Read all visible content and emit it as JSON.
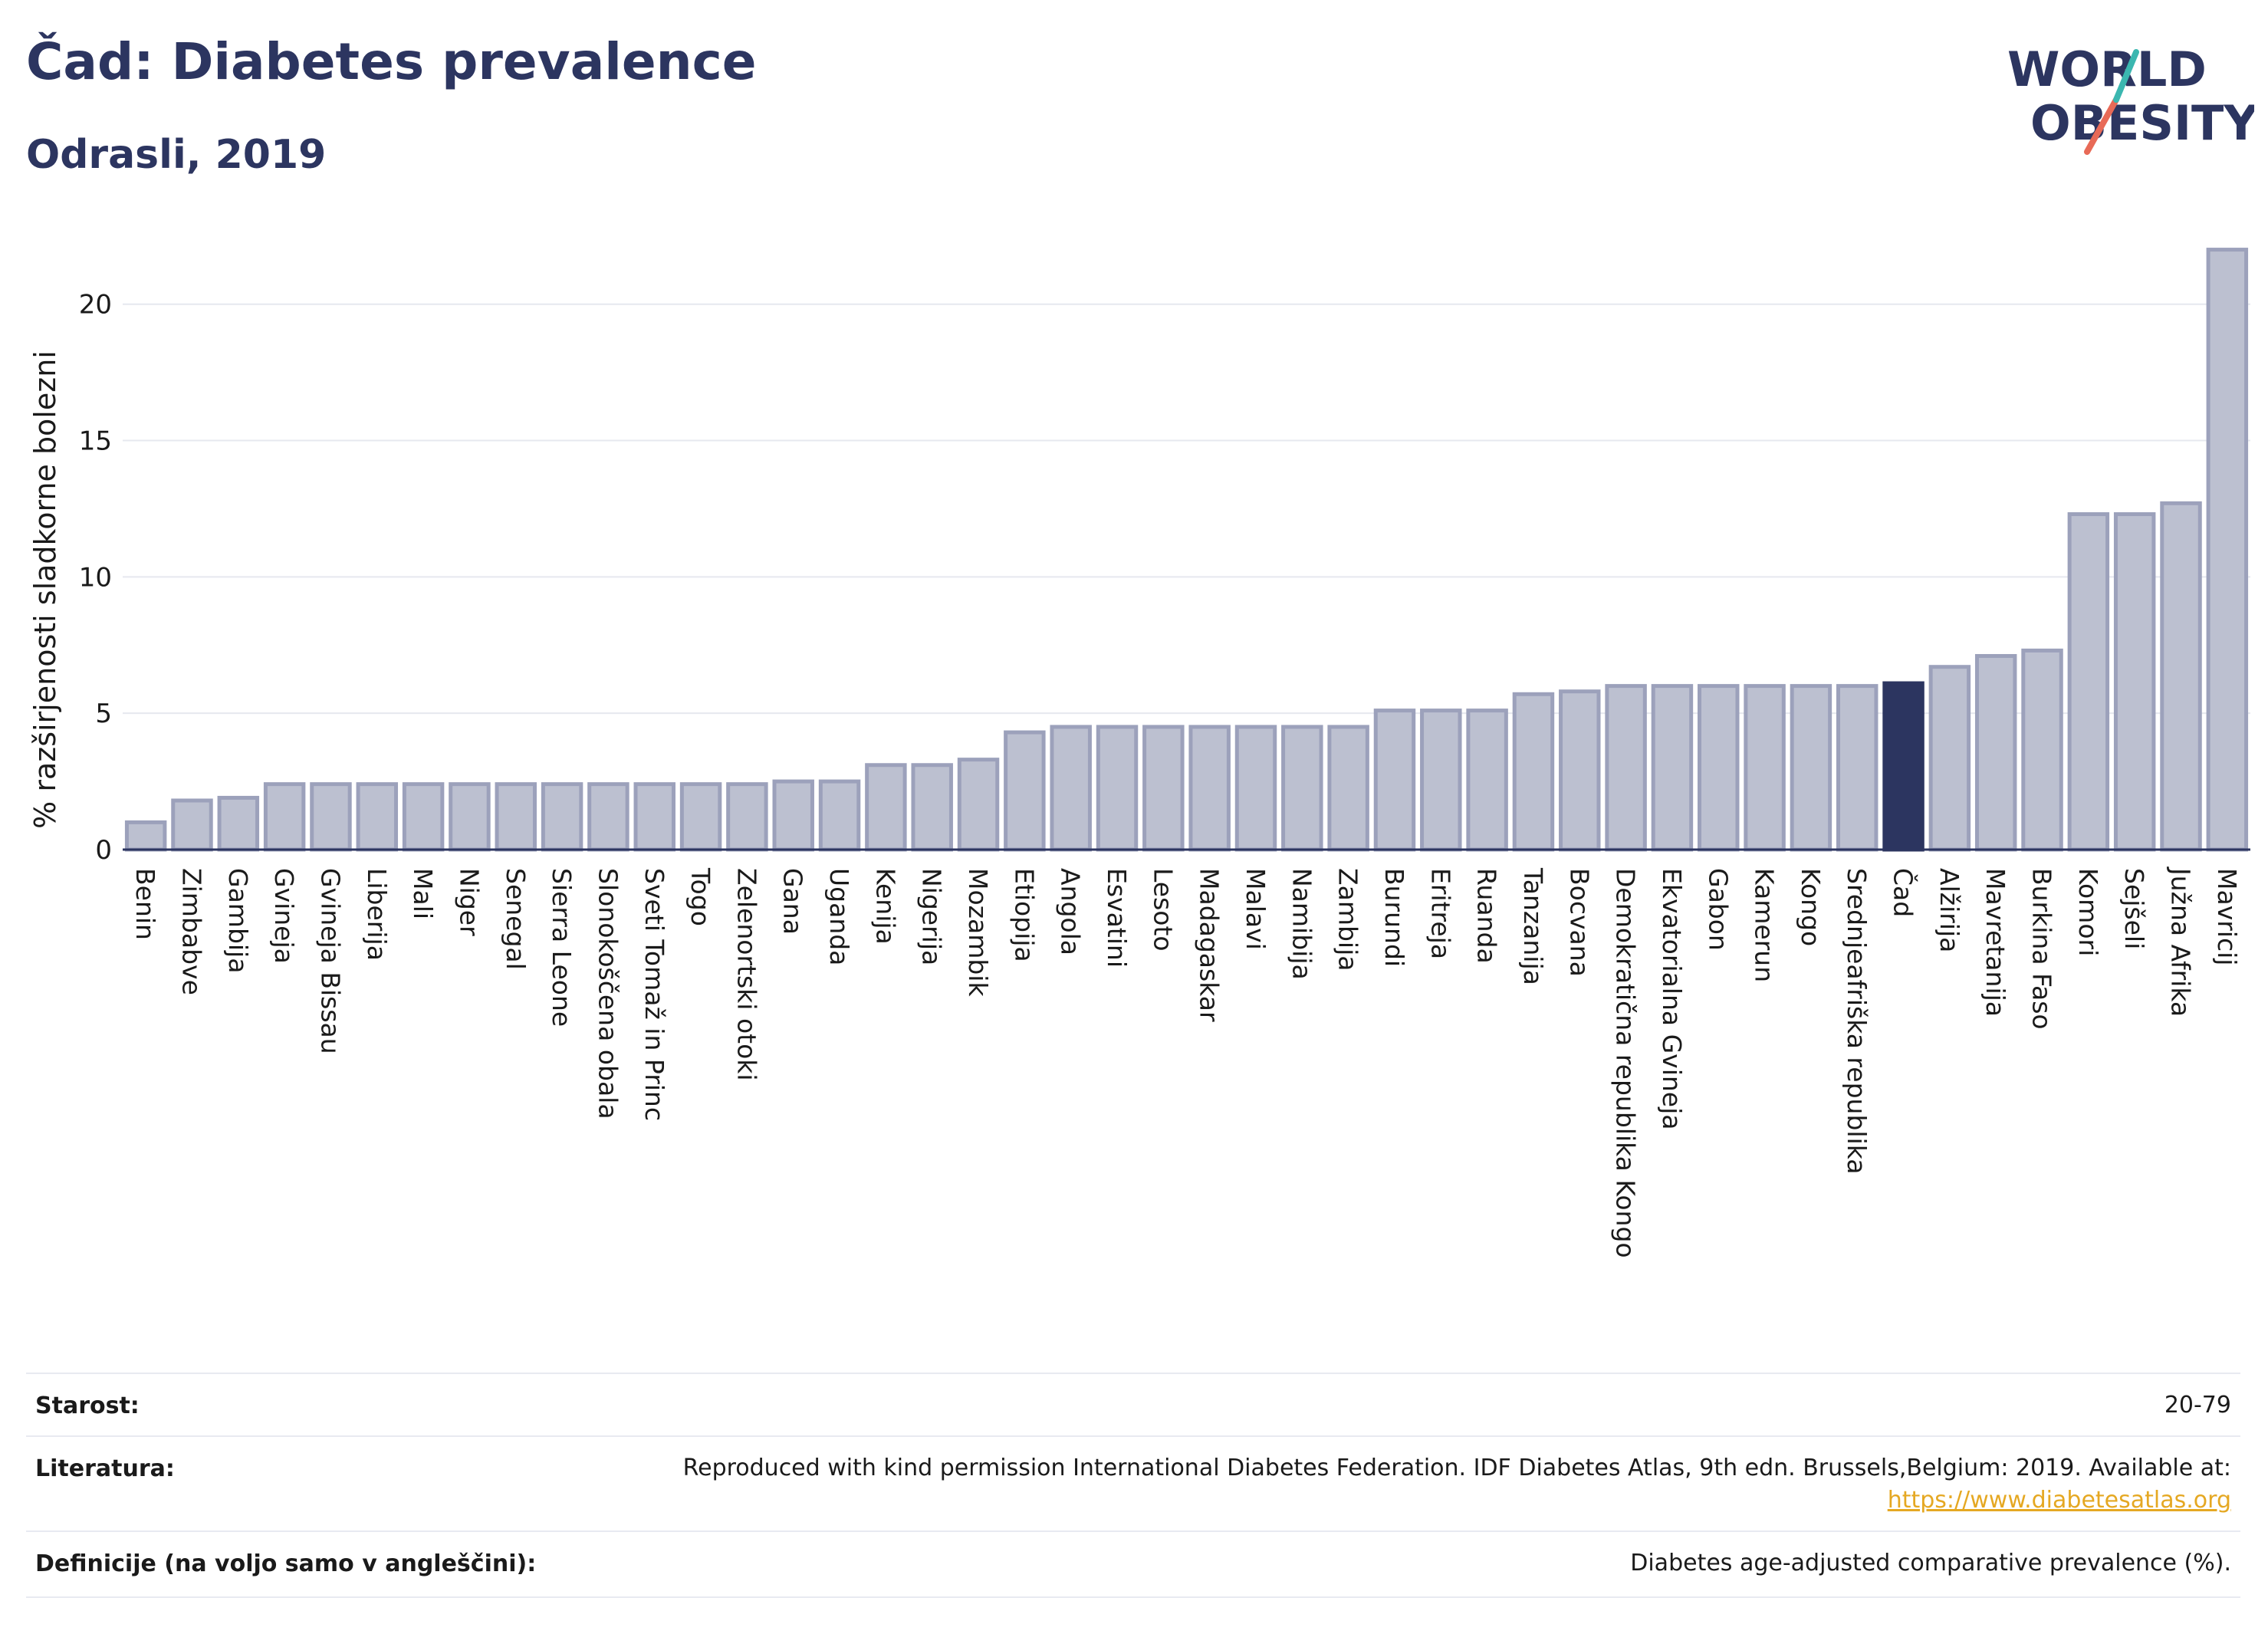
{
  "header": {
    "title": "Čad: Diabetes prevalence",
    "subtitle": "Odrasli, 2019",
    "logo_line1": "WORLD",
    "logo_line2": "OBESITY"
  },
  "chart_data": {
    "type": "bar",
    "ylabel": "% razširjenosti sladkorne bolezni",
    "ylim": [
      0,
      23
    ],
    "yticks": [
      0,
      5,
      10,
      15,
      20
    ],
    "grid": true,
    "highlight": "Čad",
    "bar_color": "#bcc0d0",
    "bar_edge_color": "#9ca1bb",
    "highlight_color": "#2c3560",
    "categories": [
      "Benin",
      "Zimbabve",
      "Gambija",
      "Gvineja",
      "Gvineja Bissau",
      "Liberija",
      "Mali",
      "Niger",
      "Senegal",
      "Sierra Leone",
      "Slonokoščena obala",
      "Sveti Tomaž in Princ",
      "Togo",
      "Zelenortski otoki",
      "Gana",
      "Uganda",
      "Kenija",
      "Nigerija",
      "Mozambik",
      "Etiopija",
      "Angola",
      "Esvatini",
      "Lesoto",
      "Madagaskar",
      "Malavi",
      "Namibija",
      "Zambija",
      "Burundi",
      "Eritreja",
      "Ruanda",
      "Tanzanija",
      "Bocvana",
      "Demokratična republika Kongo",
      "Ekvatorialna Gvineja",
      "Gabon",
      "Kamerun",
      "Kongo",
      "Srednjeafriška republika",
      "Čad",
      "Alžirija",
      "Mavretanija",
      "Burkina Faso",
      "Komori",
      "Sejšeli",
      "Južna Afrika",
      "Mavricij"
    ],
    "values": [
      1.0,
      1.8,
      1.9,
      2.4,
      2.4,
      2.4,
      2.4,
      2.4,
      2.4,
      2.4,
      2.4,
      2.4,
      2.4,
      2.4,
      2.5,
      2.5,
      3.1,
      3.1,
      3.3,
      4.3,
      4.5,
      4.5,
      4.5,
      4.5,
      4.5,
      4.5,
      4.5,
      5.1,
      5.1,
      5.1,
      5.7,
      5.8,
      6.0,
      6.0,
      6.0,
      6.0,
      6.0,
      6.0,
      6.1,
      6.7,
      7.1,
      7.3,
      12.3,
      12.3,
      12.7,
      22.0
    ]
  },
  "meta": {
    "age_key": "Starost:",
    "age_val": "20-79",
    "lit_key": "Literatura:",
    "lit_val": "Reproduced with kind permission International Diabetes Federation. IDF Diabetes Atlas, 9th edn. Brussels,Belgium: 2019. Available at:",
    "lit_link": "https://www.diabetesatlas.org",
    "def_key": "Definicije (na voljo samo v angleščini):",
    "def_val": "Diabetes age-adjusted comparative prevalence (%)."
  }
}
